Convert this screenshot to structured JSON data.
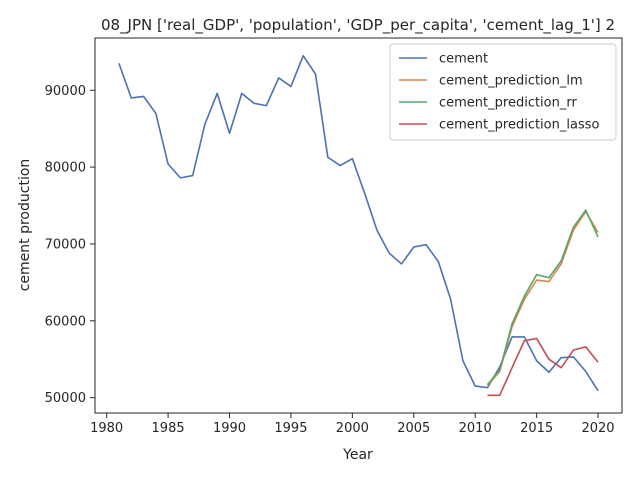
{
  "chart_data": {
    "type": "line",
    "title": "08_JPN ['real_GDP', 'population', 'GDP_per_capita', 'cement_lag_1'] 2",
    "xlabel": "Year",
    "ylabel": "cement production",
    "xlim": [
      1979.05,
      2021.95
    ],
    "ylim": [
      48000,
      96800
    ],
    "xticks": [
      1980,
      1985,
      1990,
      1995,
      2000,
      2005,
      2010,
      2015,
      2020
    ],
    "yticks": [
      50000,
      60000,
      70000,
      80000,
      90000
    ],
    "grid": false,
    "legend_position": "top-right",
    "series": [
      {
        "name": "cement",
        "color": "#4c72b0",
        "x": [
          1981,
          1982,
          1983,
          1984,
          1985,
          1986,
          1987,
          1988,
          1989,
          1990,
          1991,
          1992,
          1993,
          1994,
          1995,
          1996,
          1997,
          1998,
          1999,
          2000,
          2001,
          2002,
          2003,
          2004,
          2005,
          2006,
          2007,
          2008,
          2009,
          2010,
          2011,
          2012,
          2013,
          2014,
          2015,
          2016,
          2017,
          2018,
          2019,
          2020
        ],
        "values": [
          93500,
          89000,
          89200,
          87000,
          80400,
          78600,
          78900,
          85600,
          89600,
          84400,
          89600,
          88300,
          88000,
          91600,
          90500,
          94500,
          92100,
          81300,
          80200,
          81100,
          76600,
          71800,
          68800,
          67400,
          69600,
          69900,
          67700,
          62800,
          54800,
          51500,
          51300,
          54000,
          57900,
          57900,
          54800,
          53300,
          55200,
          55300,
          53400,
          50900
        ]
      },
      {
        "name": "cement_prediction_lm",
        "color": "#dd8452",
        "x": [
          2011,
          2012,
          2013,
          2014,
          2015,
          2016,
          2017,
          2018,
          2019,
          2020
        ],
        "values": [
          51600,
          53400,
          59200,
          62800,
          65300,
          65100,
          67400,
          71800,
          74200,
          71500
        ]
      },
      {
        "name": "cement_prediction_rr",
        "color": "#55a868",
        "x": [
          2011,
          2012,
          2013,
          2014,
          2015,
          2016,
          2017,
          2018,
          2019,
          2020
        ],
        "values": [
          51700,
          53600,
          59600,
          63200,
          66000,
          65600,
          67800,
          72200,
          74400,
          70900
        ]
      },
      {
        "name": "cement_prediction_lasso",
        "color": "#c44e52",
        "x": [
          2011,
          2012,
          2013,
          2014,
          2015,
          2016,
          2017,
          2018,
          2019,
          2020
        ],
        "values": [
          50300,
          50300,
          53900,
          57400,
          57700,
          55000,
          53900,
          56200,
          56600,
          54600
        ]
      }
    ]
  }
}
